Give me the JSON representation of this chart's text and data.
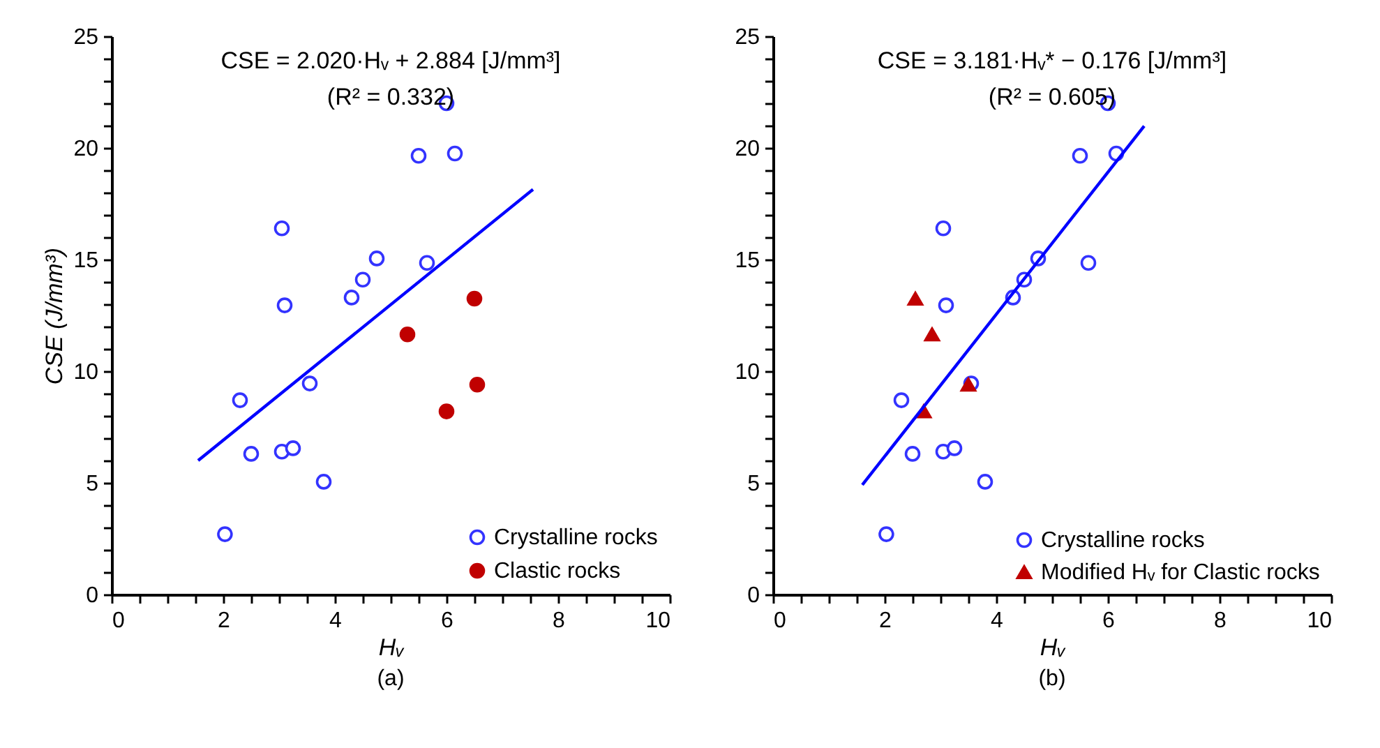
{
  "chart_data": [
    {
      "type": "scatter",
      "title": "(a)",
      "xlabel": "Hᵥ",
      "ylabel": "CSE (J/mm³)",
      "annotations": [
        "CSE = 2.020·Hᵥ + 2.884 [J/mm³]",
        "(R² = 0.332)"
      ],
      "xlim": [
        0,
        10
      ],
      "ylim": [
        0,
        25
      ],
      "xticks": [
        0,
        {
          "value": 0.5,
          "label": null
        },
        {
          "value": 1,
          "label": null
        },
        {
          "value": 1.5,
          "label": null
        },
        2,
        {
          "value": 2.5,
          "label": null
        },
        {
          "value": 3,
          "label": null
        },
        {
          "value": 3.5,
          "label": null
        },
        4,
        {
          "value": 4.5,
          "label": null
        },
        {
          "value": 5,
          "label": null
        },
        {
          "value": 5.5,
          "label": null
        },
        6,
        {
          "value": 6.5,
          "label": null
        },
        {
          "value": 7,
          "label": null
        },
        {
          "value": 7.5,
          "label": null
        },
        8,
        {
          "value": 8.5,
          "label": null
        },
        {
          "value": 9,
          "label": null
        },
        {
          "value": 9.5,
          "label": null
        },
        10
      ],
      "yticks": [
        0,
        {
          "value": 1,
          "label": null
        },
        {
          "value": 2,
          "label": null
        },
        {
          "value": 3,
          "label": null
        },
        {
          "value": 4,
          "label": null
        },
        5,
        {
          "value": 6,
          "label": null
        },
        {
          "value": 7,
          "label": null
        },
        {
          "value": 8,
          "label": null
        },
        {
          "value": 9,
          "label": null
        },
        10,
        {
          "value": 11,
          "label": null
        },
        {
          "value": 12,
          "label": null
        },
        {
          "value": 13,
          "label": null
        },
        {
          "value": 14,
          "label": null
        },
        15,
        {
          "value": 16,
          "label": null
        },
        {
          "value": 17,
          "label": null
        },
        {
          "value": 18,
          "label": null
        },
        {
          "value": 19,
          "label": null
        },
        20,
        {
          "value": 21,
          "label": null
        },
        {
          "value": 22,
          "label": null
        },
        {
          "value": 23,
          "label": null
        },
        {
          "value": 24,
          "label": null
        },
        25
      ],
      "grid": false,
      "legend": "bottom right",
      "series": [
        {
          "name": "Crystalline rocks",
          "color": "#3333ff",
          "marker": "circle",
          "x": [
            2.03,
            2.3,
            2.5,
            3.05,
            3.25,
            3.8,
            3.55,
            3.1,
            3.05,
            4.3,
            4.5,
            4.75,
            5.65,
            5.5,
            6.15,
            6.0
          ],
          "values": [
            2.7,
            8.7,
            6.3,
            6.4,
            6.55,
            5.05,
            9.45,
            12.95,
            16.4,
            13.3,
            14.1,
            15.05,
            14.85,
            19.65,
            19.75,
            22.0
          ]
        },
        {
          "name": "Clastic rocks",
          "color": "#c00000",
          "marker": "circle",
          "x": [
            5.3,
            6.0,
            6.5,
            6.55
          ],
          "values": [
            11.65,
            8.2,
            13.25,
            9.4
          ]
        },
        {
          "type": "line",
          "color": "#0000ff",
          "line_style": "solid",
          "x": [
            1.55,
            7.55
          ],
          "values": [
            6.0,
            18.14
          ]
        }
      ]
    },
    {
      "type": "scatter",
      "title": "(b)",
      "xlabel": "Hᵥ",
      "annotations": [
        "CSE = 3.181·Hᵥ* − 0.176 [J/mm³]",
        "(R² = 0.605)"
      ],
      "xlim": [
        0,
        10
      ],
      "ylim": [
        0,
        25
      ],
      "xticks": [
        0,
        {
          "value": 0.5,
          "label": null
        },
        {
          "value": 1,
          "label": null
        },
        {
          "value": 1.5,
          "label": null
        },
        2,
        {
          "value": 2.5,
          "label": null
        },
        {
          "value": 3,
          "label": null
        },
        {
          "value": 3.5,
          "label": null
        },
        4,
        {
          "value": 4.5,
          "label": null
        },
        {
          "value": 5,
          "label": null
        },
        {
          "value": 5.5,
          "label": null
        },
        6,
        {
          "value": 6.5,
          "label": null
        },
        {
          "value": 7,
          "label": null
        },
        {
          "value": 7.5,
          "label": null
        },
        8,
        {
          "value": 8.5,
          "label": null
        },
        {
          "value": 9,
          "label": null
        },
        {
          "value": 9.5,
          "label": null
        },
        10
      ],
      "yticks": [
        0,
        {
          "value": 1,
          "label": null
        },
        {
          "value": 2,
          "label": null
        },
        {
          "value": 3,
          "label": null
        },
        {
          "value": 4,
          "label": null
        },
        5,
        {
          "value": 6,
          "label": null
        },
        {
          "value": 7,
          "label": null
        },
        {
          "value": 8,
          "label": null
        },
        {
          "value": 9,
          "label": null
        },
        10,
        {
          "value": 11,
          "label": null
        },
        {
          "value": 12,
          "label": null
        },
        {
          "value": 13,
          "label": null
        },
        {
          "value": 14,
          "label": null
        },
        15,
        {
          "value": 16,
          "label": null
        },
        {
          "value": 17,
          "label": null
        },
        {
          "value": 18,
          "label": null
        },
        {
          "value": 19,
          "label": null
        },
        20,
        {
          "value": 21,
          "label": null
        },
        {
          "value": 22,
          "label": null
        },
        {
          "value": 23,
          "label": null
        },
        {
          "value": 24,
          "label": null
        },
        25
      ],
      "grid": false,
      "legend": "bottom right",
      "series": [
        {
          "name": "Crystalline rocks",
          "color": "#3333ff",
          "marker": "circle",
          "x": [
            2.03,
            2.3,
            2.5,
            3.05,
            3.25,
            3.8,
            3.55,
            3.1,
            3.05,
            4.3,
            4.5,
            4.75,
            5.65,
            5.5,
            6.15,
            6.0
          ],
          "values": [
            2.7,
            8.7,
            6.3,
            6.4,
            6.55,
            5.05,
            9.45,
            12.95,
            16.4,
            13.3,
            14.1,
            15.05,
            14.85,
            19.65,
            19.75,
            22.0
          ]
        },
        {
          "name": "Modified Hᵥ for Clastic rocks",
          "color": "#c00000",
          "marker": "triangle",
          "x": [
            2.55,
            2.85,
            2.7,
            3.5
          ],
          "values": [
            13.25,
            11.65,
            8.2,
            9.4
          ]
        },
        {
          "type": "line",
          "color": "#0000ff",
          "line_style": "solid",
          "x": [
            1.6,
            6.65
          ],
          "values": [
            4.91,
            20.98
          ]
        }
      ]
    }
  ]
}
